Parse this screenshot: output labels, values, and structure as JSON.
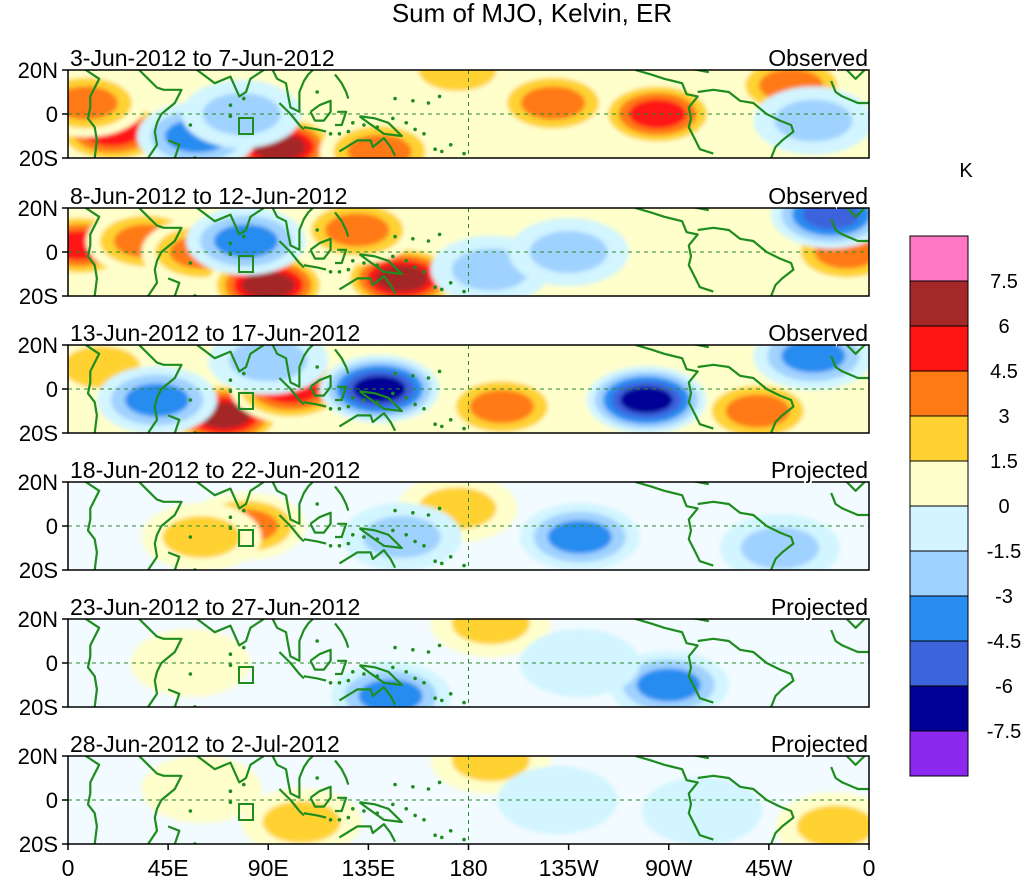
{
  "chart_data": {
    "type": "heatmap",
    "title": "Sum of MJO, Kelvin, ER",
    "units": "K",
    "x_ticks": [
      "0",
      "45E",
      "90E",
      "135E",
      "180",
      "135W",
      "90W",
      "45W",
      "0"
    ],
    "y_ticks": [
      "20N",
      "0",
      "20S"
    ],
    "colorbar_labels": [
      "7.5",
      "6",
      "4.5",
      "3",
      "1.5",
      "0",
      "-1.5",
      "-3",
      "-4.5",
      "-6",
      "-7.5"
    ],
    "colors": {
      "levels": [
        "#ff77c2",
        "#a42828",
        "#ff1414",
        "#ff7a14",
        "#ffd232",
        "#ffffcc",
        "#d2f5ff",
        "#a0d2ff",
        "#288cf0",
        "#3c64dc",
        "#000096",
        "#8c28f0"
      ],
      "coast": "#1e8c1e",
      "equator": "#2a8a2a"
    },
    "panels": [
      {
        "period": "3-Jun-2012 to 7-Jun-2012",
        "status": "Observed",
        "anomalies": [
          {
            "lon": 20,
            "lat": -8,
            "value": 6
          },
          {
            "lon": 8,
            "lat": 5,
            "value": 4.5
          },
          {
            "lon": 95,
            "lat": -15,
            "value": 7.5
          },
          {
            "lon": 140,
            "lat": -17,
            "value": 4.5
          },
          {
            "lon": 218,
            "lat": 5,
            "value": 4.5
          },
          {
            "lon": 265,
            "lat": 0,
            "value": 6
          },
          {
            "lon": 175,
            "lat": 20,
            "value": 3
          },
          {
            "lon": 325,
            "lat": 13,
            "value": 4.5
          },
          {
            "lon": 58,
            "lat": -10,
            "value": -4.5
          },
          {
            "lon": 78,
            "lat": 0,
            "value": -3
          },
          {
            "lon": 335,
            "lat": -3,
            "value": -3
          }
        ]
      },
      {
        "period": "8-Jun-2012 to 12-Jun-2012",
        "status": "Observed",
        "anomalies": [
          {
            "lon": 5,
            "lat": 3,
            "value": 6
          },
          {
            "lon": 35,
            "lat": 5,
            "value": 4.5
          },
          {
            "lon": 60,
            "lat": 0,
            "value": 4.5
          },
          {
            "lon": 90,
            "lat": -15,
            "value": 7.5
          },
          {
            "lon": 150,
            "lat": -12,
            "value": 7.5
          },
          {
            "lon": 130,
            "lat": 10,
            "value": 4.5
          },
          {
            "lon": 350,
            "lat": 0,
            "value": 4.5
          },
          {
            "lon": 80,
            "lat": 5,
            "value": -4.5
          },
          {
            "lon": 190,
            "lat": -8,
            "value": -3
          },
          {
            "lon": 225,
            "lat": 0,
            "value": -3
          },
          {
            "lon": 343,
            "lat": 17,
            "value": -6
          }
        ]
      },
      {
        "period": "13-Jun-2012 to 17-Jun-2012",
        "status": "Observed",
        "anomalies": [
          {
            "lon": 70,
            "lat": -12,
            "value": 7.5
          },
          {
            "lon": 100,
            "lat": 0,
            "value": 6
          },
          {
            "lon": 195,
            "lat": -8,
            "value": 4.5
          },
          {
            "lon": 310,
            "lat": -10,
            "value": 4.5
          },
          {
            "lon": 15,
            "lat": 10,
            "value": 3
          },
          {
            "lon": 140,
            "lat": 0,
            "value": -7.5
          },
          {
            "lon": 260,
            "lat": -5,
            "value": -7.5
          },
          {
            "lon": 40,
            "lat": -5,
            "value": -4.5
          },
          {
            "lon": 90,
            "lat": 13,
            "value": -3
          },
          {
            "lon": 335,
            "lat": 15,
            "value": -4.5
          }
        ]
      },
      {
        "period": "18-Jun-2012 to 22-Jun-2012",
        "status": "Projected",
        "anomalies": [
          {
            "lon": 80,
            "lat": 0,
            "value": 4.5
          },
          {
            "lon": 60,
            "lat": -5,
            "value": 3
          },
          {
            "lon": 175,
            "lat": 8,
            "value": 3
          },
          {
            "lon": 230,
            "lat": -5,
            "value": -4.5
          },
          {
            "lon": 150,
            "lat": -5,
            "value": -3
          },
          {
            "lon": 320,
            "lat": -10,
            "value": -3
          }
        ]
      },
      {
        "period": "23-Jun-2012 to 27-Jun-2012",
        "status": "Projected",
        "anomalies": [
          {
            "lon": 190,
            "lat": 18,
            "value": 3
          },
          {
            "lon": 55,
            "lat": 0,
            "value": 1.5
          },
          {
            "lon": 145,
            "lat": -15,
            "value": -4.5
          },
          {
            "lon": 270,
            "lat": -10,
            "value": -4.5
          },
          {
            "lon": 230,
            "lat": 0,
            "value": -1.5
          }
        ]
      },
      {
        "period": "28-Jun-2012 to 2-Jul-2012",
        "status": "Projected",
        "anomalies": [
          {
            "lon": 105,
            "lat": -10,
            "value": 3
          },
          {
            "lon": 190,
            "lat": 18,
            "value": 3
          },
          {
            "lon": 345,
            "lat": -12,
            "value": 3
          },
          {
            "lon": 60,
            "lat": 5,
            "value": 1.5
          },
          {
            "lon": 220,
            "lat": 0,
            "value": -1.5
          },
          {
            "lon": 285,
            "lat": -5,
            "value": -1.5
          }
        ]
      }
    ]
  }
}
